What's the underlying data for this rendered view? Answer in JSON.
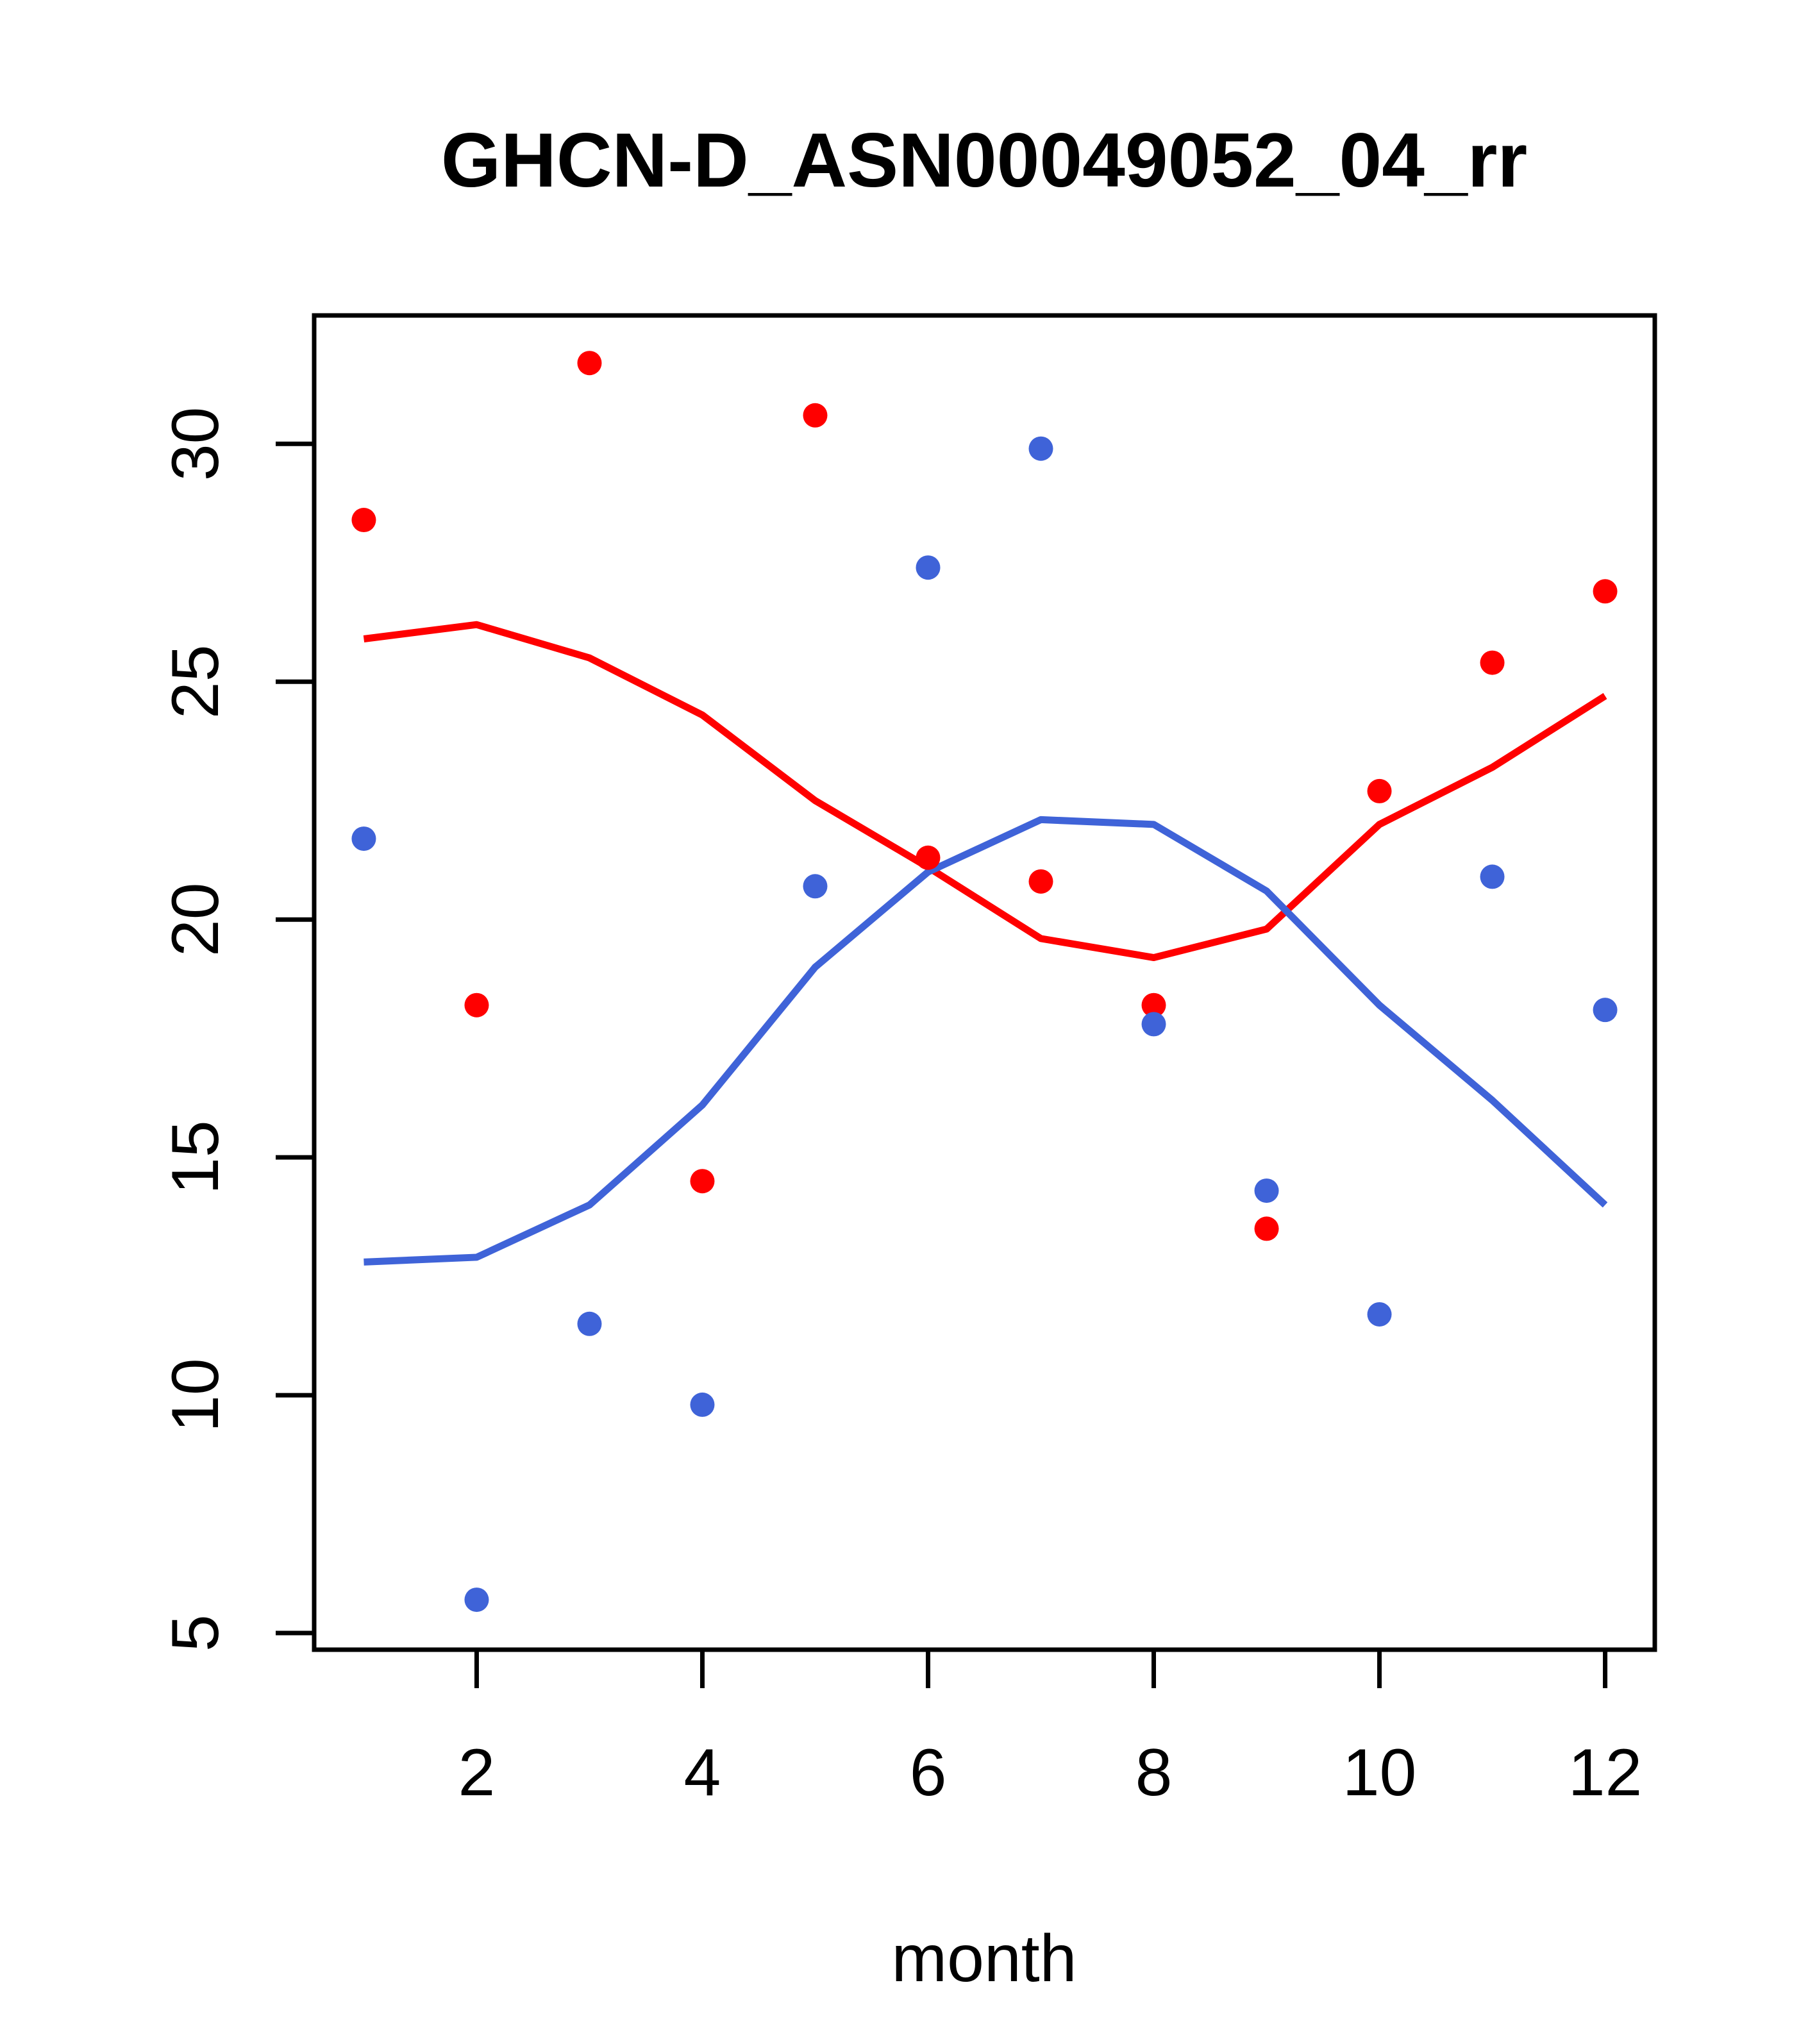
{
  "title": "GHCN-D_ASN00049052_04_rr",
  "x_axis_label": "month",
  "colors": {
    "red_series": "#FF0000",
    "blue_series": "#3F63D8",
    "axis": "#000000",
    "background": "#FFFFFF"
  },
  "axes": {
    "x_ticks": [
      "2",
      "4",
      "6",
      "8",
      "10",
      "12"
    ],
    "y_ticks": [
      "5",
      "10",
      "15",
      "20",
      "25",
      "30"
    ],
    "x_range": [
      0.56,
      12.44
    ],
    "y_range": [
      4.65,
      32.7
    ]
  },
  "chart_data": {
    "type": "scatter",
    "title": "GHCN-D_ASN00049052_04_rr",
    "xlabel": "month",
    "ylabel": "",
    "x": [
      1,
      2,
      3,
      4,
      5,
      6,
      7,
      8,
      9,
      10,
      11,
      12
    ],
    "xlim": [
      0.56,
      12.44
    ],
    "ylim": [
      4.65,
      32.7
    ],
    "grid": false,
    "legend_position": "none",
    "series": [
      {
        "name": "red_points",
        "kind": "scatter",
        "color": "#FF0000",
        "values": [
          28.4,
          18.2,
          31.7,
          14.5,
          30.6,
          21.3,
          20.8,
          18.2,
          13.5,
          22.7,
          25.4,
          26.9
        ]
      },
      {
        "name": "blue_points",
        "kind": "scatter",
        "color": "#3F63D8",
        "values": [
          21.7,
          5.7,
          11.5,
          9.8,
          20.7,
          27.4,
          29.9,
          17.8,
          14.3,
          11.7,
          20.9,
          18.1
        ]
      },
      {
        "name": "red_smooth_line",
        "kind": "line",
        "color": "#FF0000",
        "values": [
          25.9,
          26.2,
          25.5,
          24.3,
          22.5,
          21.1,
          19.6,
          19.2,
          19.8,
          22.0,
          23.2,
          24.7
        ]
      },
      {
        "name": "blue_smooth_line",
        "kind": "line",
        "color": "#3F63D8",
        "values": [
          12.8,
          12.9,
          14.0,
          16.1,
          19.0,
          21.0,
          22.1,
          22.0,
          20.6,
          18.2,
          16.2,
          14.0
        ]
      }
    ]
  }
}
